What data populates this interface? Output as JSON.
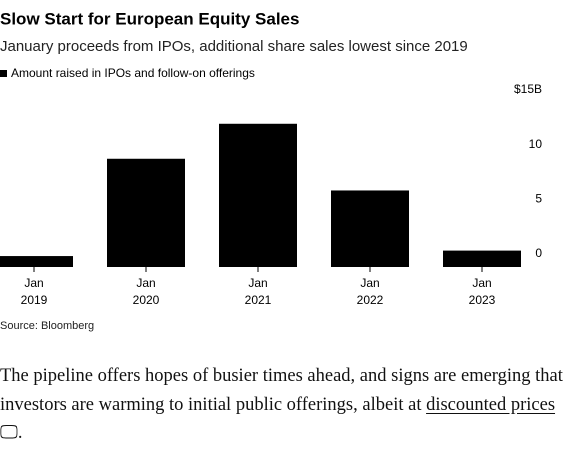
{
  "chart_data": {
    "type": "bar",
    "title": "Slow Start for European Equity Sales",
    "subtitle": "January proceeds from IPOs, additional share sales lowest since 2019",
    "legend": "Amount raised in IPOs and follow-on offerings",
    "categories": [
      "Jan\n2019",
      "Jan\n2020",
      "Jan\n2021",
      "Jan\n2022",
      "Jan\n2023"
    ],
    "values": [
      1.0,
      9.9,
      13.1,
      7.0,
      1.5
    ],
    "color": "#000000",
    "ylim": [
      0,
      15
    ],
    "yticks": [
      0,
      5,
      10,
      {
        "value": 15,
        "label": "$15B"
      }
    ],
    "grid": false,
    "source": "Source: Bloomberg"
  },
  "article": {
    "before_link": "The pipeline offers hopes of busier times ahead, and signs are emerging that investors are warming to initial public offerings, albeit at ",
    "link": "discounted prices",
    "after_link": "."
  }
}
